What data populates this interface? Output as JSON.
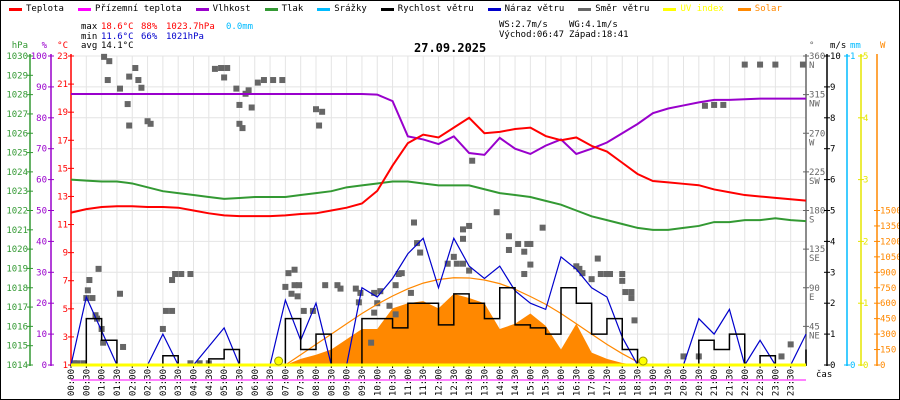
{
  "legend": [
    {
      "label": "Teplota",
      "color": "#ff0000"
    },
    {
      "label": "Přízemní teplota",
      "color": "#ff00ff"
    },
    {
      "label": "Vlhkost",
      "color": "#9900cc"
    },
    {
      "label": "Tlak",
      "color": "#339933"
    },
    {
      "label": "Srážky",
      "color": "#00bbff"
    },
    {
      "label": "Rychlost větru",
      "color": "#000000"
    },
    {
      "label": "Náraz větru",
      "color": "#0000cc"
    },
    {
      "label": "Směr větru",
      "color": "#666666"
    },
    {
      "label": "UV index",
      "color": "#ffff00"
    },
    {
      "label": "Solar",
      "color": "#ff8800"
    }
  ],
  "stats": {
    "max_label": "max",
    "max_temp": "18.6°C",
    "max_hum": "88%",
    "max_press": "1023.7hPa",
    "max_rain": "0.0mm",
    "min_label": "min",
    "min_temp": "11.6°C",
    "min_hum": "66%",
    "min_press": "1021hPa",
    "avg_label": "avg",
    "avg_temp": "14.1°C",
    "ws": "WS:2.7m/s",
    "wg": "WG:4.1m/s",
    "sunrise": "Východ:06:47",
    "sunset": "Západ:18:41"
  },
  "title": "27.09.2025",
  "colors": {
    "temp": "#ff0000",
    "feel": "#ff00ff",
    "hum": "#9900cc",
    "press": "#339933",
    "rain": "#00bbff",
    "speed": "#000000",
    "gust": "#0000cc",
    "dir": "#666666",
    "uv": "#ffff00",
    "solar": "#ff8800",
    "grid": "#e4e4e4"
  },
  "chart_data": {
    "type": "line",
    "title": "27.09.2025",
    "xlabel": "čas",
    "xlim": [
      0,
      24
    ],
    "x_ticks": [
      "00:00",
      "00:30",
      "01:00",
      "01:30",
      "02:00",
      "02:30",
      "03:00",
      "03:30",
      "04:00",
      "04:30",
      "05:00",
      "05:30",
      "06:00",
      "06:30",
      "07:00",
      "07:30",
      "08:00",
      "08:30",
      "09:00",
      "09:30",
      "10:00",
      "10:30",
      "11:00",
      "11:30",
      "12:00",
      "12:30",
      "13:00",
      "13:30",
      "14:00",
      "14:30",
      "15:00",
      "15:30",
      "16:00",
      "16:30",
      "17:00",
      "17:30",
      "18:00",
      "18:30",
      "19:00",
      "19:30",
      "20:00",
      "20:30",
      "21:00",
      "21:30",
      "22:00",
      "22:30",
      "23:00",
      "23:30"
    ],
    "axes": {
      "press": {
        "unit": "hPa",
        "range": [
          1014,
          1030
        ],
        "ticks": [
          "1014",
          "1015",
          "1016",
          "1017",
          "1018",
          "1019",
          "1020",
          "1021",
          "1022",
          "1023",
          "1024",
          "1025",
          "1026",
          "1027",
          "1028",
          "1029",
          "1030"
        ]
      },
      "hum": {
        "unit": "%",
        "range": [
          0,
          100
        ],
        "ticks": [
          "0",
          "10",
          "20",
          "30",
          "40",
          "50",
          "60",
          "70",
          "80",
          "90",
          "100"
        ]
      },
      "temp": {
        "unit": "°C",
        "range": [
          1,
          23
        ],
        "ticks": [
          "1",
          "3",
          "5",
          "7",
          "9",
          "11",
          "13",
          "15",
          "17",
          "19",
          "21",
          "23"
        ]
      },
      "dir": {
        "unit": "°",
        "range": [
          0,
          360
        ],
        "ticks": [
          [
            "45",
            "NE"
          ],
          [
            "90",
            "E"
          ],
          [
            "135",
            "SE"
          ],
          [
            "180",
            "S"
          ],
          [
            "225",
            "SW"
          ],
          [
            "270",
            "W"
          ],
          [
            "315",
            "NW"
          ],
          [
            "360",
            "N"
          ]
        ]
      },
      "wind": {
        "unit": "m/s",
        "range": [
          0,
          10
        ],
        "ticks": [
          "0",
          "1",
          "2",
          "3",
          "4",
          "5",
          "6",
          "7",
          "8",
          "9",
          "10"
        ]
      },
      "rain": {
        "unit": "mm",
        "range": [
          0,
          1
        ],
        "ticks": [
          "0",
          "1"
        ]
      },
      "uv": {
        "unit": "",
        "range": [
          0,
          5
        ],
        "ticks": [
          "0",
          "1",
          "2",
          "3",
          "4",
          "5"
        ]
      },
      "solar": {
        "unit": "W",
        "range": [
          0,
          3000
        ],
        "ticks": [
          "0",
          "150",
          "300",
          "450",
          "600",
          "750",
          "900",
          "1050",
          "1200",
          "1350",
          "1500"
        ]
      }
    },
    "x_hours": [
      0,
      0.5,
      1,
      1.5,
      2,
      2.5,
      3,
      3.5,
      4,
      4.5,
      5,
      5.5,
      6,
      6.5,
      7,
      7.5,
      8,
      8.5,
      9,
      9.5,
      10,
      10.5,
      11,
      11.5,
      12,
      12.5,
      13,
      13.5,
      14,
      14.5,
      15,
      15.5,
      16,
      16.5,
      17,
      17.5,
      18,
      18.5,
      19,
      19.5,
      20,
      20.5,
      21,
      21.5,
      22,
      22.5,
      23,
      23.5,
      24
    ],
    "series": [
      {
        "name": "Teplota",
        "key": "temp",
        "axis": "temp",
        "values": [
          11.85,
          12.1,
          12.25,
          12.3,
          12.3,
          12.25,
          12.25,
          12.2,
          12.0,
          11.8,
          11.65,
          11.6,
          11.6,
          11.6,
          11.65,
          11.75,
          11.8,
          12.0,
          12.2,
          12.5,
          13.4,
          15.2,
          16.8,
          17.4,
          17.2,
          17.9,
          18.6,
          17.5,
          17.6,
          17.8,
          17.9,
          17.3,
          17.0,
          17.2,
          16.6,
          16.2,
          15.4,
          14.6,
          14.1,
          14.0,
          13.9,
          13.8,
          13.5,
          13.3,
          13.1,
          13.0,
          12.9,
          12.8,
          12.7
        ]
      },
      {
        "name": "Vlhkost",
        "key": "hum",
        "axis": "hum",
        "values": [
          87.7,
          87.7,
          87.7,
          87.7,
          87.7,
          87.7,
          87.7,
          87.7,
          87.7,
          87.7,
          87.7,
          87.7,
          87.7,
          87.7,
          87.7,
          87.7,
          87.7,
          87.7,
          87.7,
          87.7,
          87.5,
          85.4,
          74,
          73,
          71.5,
          74,
          68.6,
          68,
          73.5,
          70,
          68.3,
          71,
          73,
          68.3,
          70,
          72,
          75,
          78,
          81.5,
          83,
          84,
          85,
          85.8,
          85.8,
          86,
          86.2,
          86.2,
          86.2,
          86.2
        ]
      },
      {
        "name": "Tlak",
        "key": "press",
        "axis": "press",
        "values": [
          1023.6,
          1023.55,
          1023.5,
          1023.5,
          1023.4,
          1023.2,
          1023.0,
          1022.9,
          1022.8,
          1022.7,
          1022.6,
          1022.65,
          1022.7,
          1022.7,
          1022.7,
          1022.8,
          1022.9,
          1023.0,
          1023.2,
          1023.3,
          1023.4,
          1023.5,
          1023.5,
          1023.4,
          1023.3,
          1023.3,
          1023.3,
          1023.1,
          1022.9,
          1022.8,
          1022.7,
          1022.5,
          1022.3,
          1022.0,
          1021.7,
          1021.5,
          1021.3,
          1021.1,
          1021.0,
          1021.0,
          1021.1,
          1021.2,
          1021.4,
          1021.4,
          1021.5,
          1021.5,
          1021.6,
          1021.5,
          1021.45
        ]
      },
      {
        "name": "Rychlost větru",
        "key": "speed",
        "axis": "wind",
        "values": [
          0,
          1.5,
          0.8,
          0,
          0,
          0,
          0.3,
          0,
          0,
          0.2,
          0.5,
          0,
          0,
          0,
          1.5,
          0.5,
          1,
          0,
          0,
          1.5,
          1.5,
          1.2,
          2,
          2,
          1.3,
          2.3,
          2,
          1.5,
          2.5,
          1.3,
          1.2,
          1,
          2.5,
          2,
          1,
          1.5,
          0.5,
          0,
          0,
          0,
          0,
          0.8,
          0.5,
          1,
          0,
          0.3,
          0,
          0,
          0.5
        ]
      },
      {
        "name": "Náraz větru",
        "key": "gust",
        "axis": "wind",
        "values": [
          0,
          2.2,
          1.1,
          0,
          0,
          0,
          1,
          0,
          0,
          0.6,
          1.2,
          0,
          0,
          0,
          2.1,
          0.8,
          2,
          0,
          0,
          2.5,
          2.2,
          2.8,
          3.6,
          4.1,
          2.5,
          4.1,
          3.2,
          2.8,
          3.2,
          2.4,
          2.0,
          1.8,
          3.5,
          3.1,
          2.5,
          2.2,
          0.9,
          0,
          0,
          0,
          0,
          1.5,
          1,
          1.8,
          0,
          0.8,
          0,
          0,
          1
        ]
      },
      {
        "name": "Solar",
        "key": "solar",
        "axis": "solar",
        "values": [
          0,
          0,
          0,
          0,
          0,
          0,
          0,
          0,
          0,
          0,
          0,
          0,
          0,
          0,
          0,
          60,
          100,
          150,
          250,
          350,
          350,
          550,
          600,
          620,
          550,
          690,
          650,
          600,
          350,
          400,
          500,
          380,
          150,
          400,
          120,
          60,
          20,
          0,
          0,
          0,
          0,
          0,
          0,
          0,
          0,
          0,
          0,
          0,
          0
        ]
      },
      {
        "name": "Solar max",
        "key": "solarmax",
        "axis": "solar",
        "values": [
          0,
          0,
          0,
          0,
          0,
          0,
          0,
          0,
          0,
          0,
          0,
          0,
          0,
          0,
          0,
          100,
          200,
          300,
          400,
          500,
          590,
          670,
          740,
          795,
          830,
          847,
          845,
          825,
          790,
          735,
          665,
          590,
          500,
          400,
          300,
          200,
          110,
          30,
          0,
          0,
          0,
          0,
          0,
          0,
          0,
          0,
          0,
          0,
          0
        ]
      },
      {
        "name": "UV index",
        "key": "uv",
        "axis": "uv",
        "values": [
          0,
          0,
          0,
          0,
          0,
          0,
          0,
          0,
          0,
          0,
          0,
          0,
          0,
          0,
          0,
          0,
          0,
          0,
          0,
          0,
          0,
          0,
          0,
          0,
          0,
          0,
          0,
          0,
          0,
          0,
          0,
          0,
          0,
          0,
          0,
          0,
          0,
          0,
          0,
          0,
          0,
          0,
          0,
          0,
          0,
          0,
          0,
          0,
          0
        ]
      }
    ],
    "wind_direction": [
      [
        0.1,
        2
      ],
      [
        0.2,
        2
      ],
      [
        0.4,
        2
      ],
      [
        0.5,
        78
      ],
      [
        0.55,
        87
      ],
      [
        0.6,
        99
      ],
      [
        0.7,
        78
      ],
      [
        0.8,
        58
      ],
      [
        0.85,
        54
      ],
      [
        0.9,
        112
      ],
      [
        1.0,
        42
      ],
      [
        1.05,
        26
      ],
      [
        1.08,
        359
      ],
      [
        1.2,
        332
      ],
      [
        1.25,
        354
      ],
      [
        1.6,
        83
      ],
      [
        1.6,
        322
      ],
      [
        1.7,
        21
      ],
      [
        1.85,
        304
      ],
      [
        1.9,
        279
      ],
      [
        1.9,
        336
      ],
      [
        2.1,
        346
      ],
      [
        2.2,
        332
      ],
      [
        2.3,
        323
      ],
      [
        2.5,
        284
      ],
      [
        2.6,
        281
      ],
      [
        3.0,
        42
      ],
      [
        3.1,
        63
      ],
      [
        3.3,
        63
      ],
      [
        3.3,
        99
      ],
      [
        3.4,
        106
      ],
      [
        3.6,
        106
      ],
      [
        3.9,
        106
      ],
      [
        3.9,
        2
      ],
      [
        4.2,
        2
      ],
      [
        4.5,
        2
      ],
      [
        4.7,
        345
      ],
      [
        4.9,
        346
      ],
      [
        5.0,
        335
      ],
      [
        5.1,
        346
      ],
      [
        5.4,
        322
      ],
      [
        5.5,
        281
      ],
      [
        5.5,
        303
      ],
      [
        5.6,
        276
      ],
      [
        5.7,
        316
      ],
      [
        5.8,
        320
      ],
      [
        5.9,
        300
      ],
      [
        6.1,
        329
      ],
      [
        6.3,
        332
      ],
      [
        6.6,
        332
      ],
      [
        6.9,
        332
      ],
      [
        7.0,
        91
      ],
      [
        7.1,
        107
      ],
      [
        7.2,
        83
      ],
      [
        7.3,
        111
      ],
      [
        7.3,
        93
      ],
      [
        7.4,
        80
      ],
      [
        7.45,
        93
      ],
      [
        7.6,
        63
      ],
      [
        7.9,
        63
      ],
      [
        8.0,
        298
      ],
      [
        8.1,
        279
      ],
      [
        8.2,
        295
      ],
      [
        8.3,
        93
      ],
      [
        8.7,
        93
      ],
      [
        8.8,
        89
      ],
      [
        9.3,
        89
      ],
      [
        9.4,
        73
      ],
      [
        9.45,
        84
      ],
      [
        9.8,
        26
      ],
      [
        9.9,
        61
      ],
      [
        9.9,
        84
      ],
      [
        10.0,
        72
      ],
      [
        10.1,
        86
      ],
      [
        10.4,
        69
      ],
      [
        10.6,
        59
      ],
      [
        10.6,
        93
      ],
      [
        10.7,
        106
      ],
      [
        10.8,
        107
      ],
      [
        11.1,
        84
      ],
      [
        11.2,
        166
      ],
      [
        11.3,
        142
      ],
      [
        11.4,
        131
      ],
      [
        12.3,
        118
      ],
      [
        12.5,
        126
      ],
      [
        12.6,
        118
      ],
      [
        12.8,
        118
      ],
      [
        12.8,
        147
      ],
      [
        12.8,
        158
      ],
      [
        13.0,
        110
      ],
      [
        13.0,
        162
      ],
      [
        13.1,
        238
      ],
      [
        13.9,
        178
      ],
      [
        14.3,
        150
      ],
      [
        14.3,
        134
      ],
      [
        14.6,
        141
      ],
      [
        14.8,
        132
      ],
      [
        14.8,
        106
      ],
      [
        14.9,
        141
      ],
      [
        15.0,
        141
      ],
      [
        15.0,
        117
      ],
      [
        15.4,
        160
      ],
      [
        16.5,
        115
      ],
      [
        16.6,
        112
      ],
      [
        16.7,
        107
      ],
      [
        17.0,
        100
      ],
      [
        17.2,
        124
      ],
      [
        17.3,
        106
      ],
      [
        17.5,
        106
      ],
      [
        17.6,
        106
      ],
      [
        18.0,
        106
      ],
      [
        18.0,
        98
      ],
      [
        18.1,
        85
      ],
      [
        18.3,
        85
      ],
      [
        18.3,
        78
      ],
      [
        18.4,
        52
      ],
      [
        20.0,
        10
      ],
      [
        20.5,
        10
      ],
      [
        20.7,
        302
      ],
      [
        21.0,
        303
      ],
      [
        21.3,
        303
      ],
      [
        22.0,
        350
      ],
      [
        22.5,
        350
      ],
      [
        23.0,
        350
      ],
      [
        23.2,
        10
      ],
      [
        23.5,
        24
      ],
      [
        23.9,
        350
      ]
    ],
    "sun_markers": [
      6.78,
      18.68
    ]
  }
}
